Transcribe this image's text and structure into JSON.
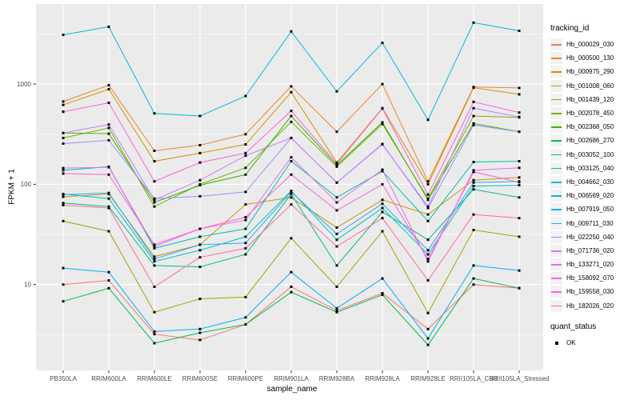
{
  "figure": {
    "xlabel": "sample_name",
    "ylabel": "FPKM + 1",
    "legend_title": "tracking_id",
    "legend2_title": "quant_status",
    "legend2_items": [
      {
        "label": "OK",
        "marker": "black-square"
      }
    ],
    "colors": {
      "panel_bg": "#EBEBEB",
      "grid": "#FFFFFF",
      "legend_key_bg": "#F2F2F2",
      "axis_text": "#4D4D4D",
      "tick_mark": "#333333",
      "point": "#000000"
    }
  },
  "chart_data": {
    "type": "line",
    "title": "",
    "xlabel": "sample_name",
    "ylabel": "FPKM + 1",
    "yscale": "log10",
    "yticks": [
      10,
      100,
      1000
    ],
    "yticks_minor": [
      3.16,
      31.6,
      316,
      3160
    ],
    "ylim": [
      1.4,
      6300
    ],
    "grid": true,
    "legend_position": "right",
    "point_marker": "small-black-square",
    "categories": [
      "PB350LA",
      "RRIM600LA",
      "RRIM600LE",
      "RRIM600SE",
      "RRIM600PE",
      "RRIM901LA",
      "RRIM928BA",
      "RRIM928LA",
      "RRIM928LE",
      "RRII105LA_Cold",
      "RRII105LA_Stressed"
    ],
    "series": [
      {
        "name": "Hb_000029_030",
        "color": "#F8766D",
        "values": [
          10,
          11,
          3.2,
          2.8,
          4.0,
          9.5,
          5.5,
          8.2,
          3.6,
          10,
          9.2
        ]
      },
      {
        "name": "Hb_000500_130",
        "color": "#EA8331",
        "values": [
          670,
          975,
          216,
          246,
          316,
          950,
          335,
          1000,
          107,
          935,
          915
        ]
      },
      {
        "name": "Hb_000975_290",
        "color": "#D89000",
        "values": [
          620,
          890,
          170,
          205,
          250,
          830,
          165,
          575,
          100,
          920,
          790
        ]
      },
      {
        "name": "Hb_001008_060",
        "color": "#C09B00",
        "values": [
          75,
          80,
          19,
          25,
          63,
          74,
          37,
          70,
          50,
          110,
          117
        ]
      },
      {
        "name": "Hb_001439_120",
        "color": "#A3A500",
        "values": [
          43,
          34,
          5.3,
          7.2,
          7.5,
          29,
          9.5,
          34,
          5.2,
          35,
          30
        ]
      },
      {
        "name": "Hb_002078_450",
        "color": "#7CAE00",
        "values": [
          290,
          365,
          60,
          100,
          146,
          420,
          150,
          400,
          72,
          480,
          465
        ]
      },
      {
        "name": "Hb_002368_050",
        "color": "#39B600",
        "values": [
          325,
          320,
          66,
          98,
          125,
          480,
          155,
          415,
          70,
          405,
          335
        ]
      },
      {
        "name": "Hb_002686_270",
        "color": "#00BB4E",
        "values": [
          6.8,
          9.2,
          2.6,
          3.3,
          4.0,
          8.4,
          5.3,
          7.9,
          2.5,
          11.5,
          9.2
        ]
      },
      {
        "name": "Hb_003052_100",
        "color": "#00BF7D",
        "values": [
          65,
          60,
          15.5,
          15,
          20,
          80,
          15.5,
          53,
          28,
          89,
          74
        ]
      },
      {
        "name": "Hb_003125_040",
        "color": "#00C1A3",
        "values": [
          138,
          150,
          23,
          30,
          36,
          170,
          74,
          135,
          43,
          167,
          170
        ]
      },
      {
        "name": "Hb_004662_030",
        "color": "#00BFC4",
        "values": [
          80,
          72,
          17,
          22,
          30,
          86,
          28,
          58,
          20,
          96,
          98
        ]
      },
      {
        "name": "Hb_006569_020",
        "color": "#00BADE",
        "values": [
          3100,
          3730,
          510,
          480,
          760,
          3350,
          845,
          2580,
          440,
          4100,
          3400
        ]
      },
      {
        "name": "Hb_007919_050",
        "color": "#00B0F6",
        "values": [
          14.6,
          13.3,
          3.4,
          3.6,
          4.7,
          13.3,
          5.8,
          11.5,
          2.9,
          15.5,
          13.8
        ]
      },
      {
        "name": "Hb_009711_030",
        "color": "#35A2FF",
        "values": [
          79,
          82,
          18,
          25,
          26,
          84,
          32,
          64,
          22,
          104,
          107
        ]
      },
      {
        "name": "Hb_022250_040",
        "color": "#9590FF",
        "values": [
          255,
          275,
          72,
          76,
          84,
          290,
          104,
          253,
          58,
          390,
          335
        ]
      },
      {
        "name": "Hb_071736_020",
        "color": "#C77CFF",
        "values": [
          325,
          395,
          70,
          110,
          193,
          290,
          104,
          250,
          60,
          575,
          470
        ]
      },
      {
        "name": "Hb_133271_020",
        "color": "#E76BF3",
        "values": [
          145,
          148,
          24,
          36,
          44,
          186,
          66,
          140,
          17,
          138,
          146
        ]
      },
      {
        "name": "Hb_158092_070",
        "color": "#FA62DB",
        "values": [
          128,
          125,
          25,
          36,
          47,
          125,
          55,
          100,
          18,
          133,
          105
        ]
      },
      {
        "name": "Hb_159558_030",
        "color": "#FF61CC",
        "values": [
          530,
          650,
          107,
          165,
          205,
          540,
          160,
          570,
          79,
          665,
          520
        ]
      },
      {
        "name": "Hb_182026_020",
        "color": "#FF6A98",
        "values": [
          62,
          58,
          9.5,
          18.7,
          23,
          63,
          24,
          46,
          11,
          50,
          46
        ]
      }
    ]
  }
}
